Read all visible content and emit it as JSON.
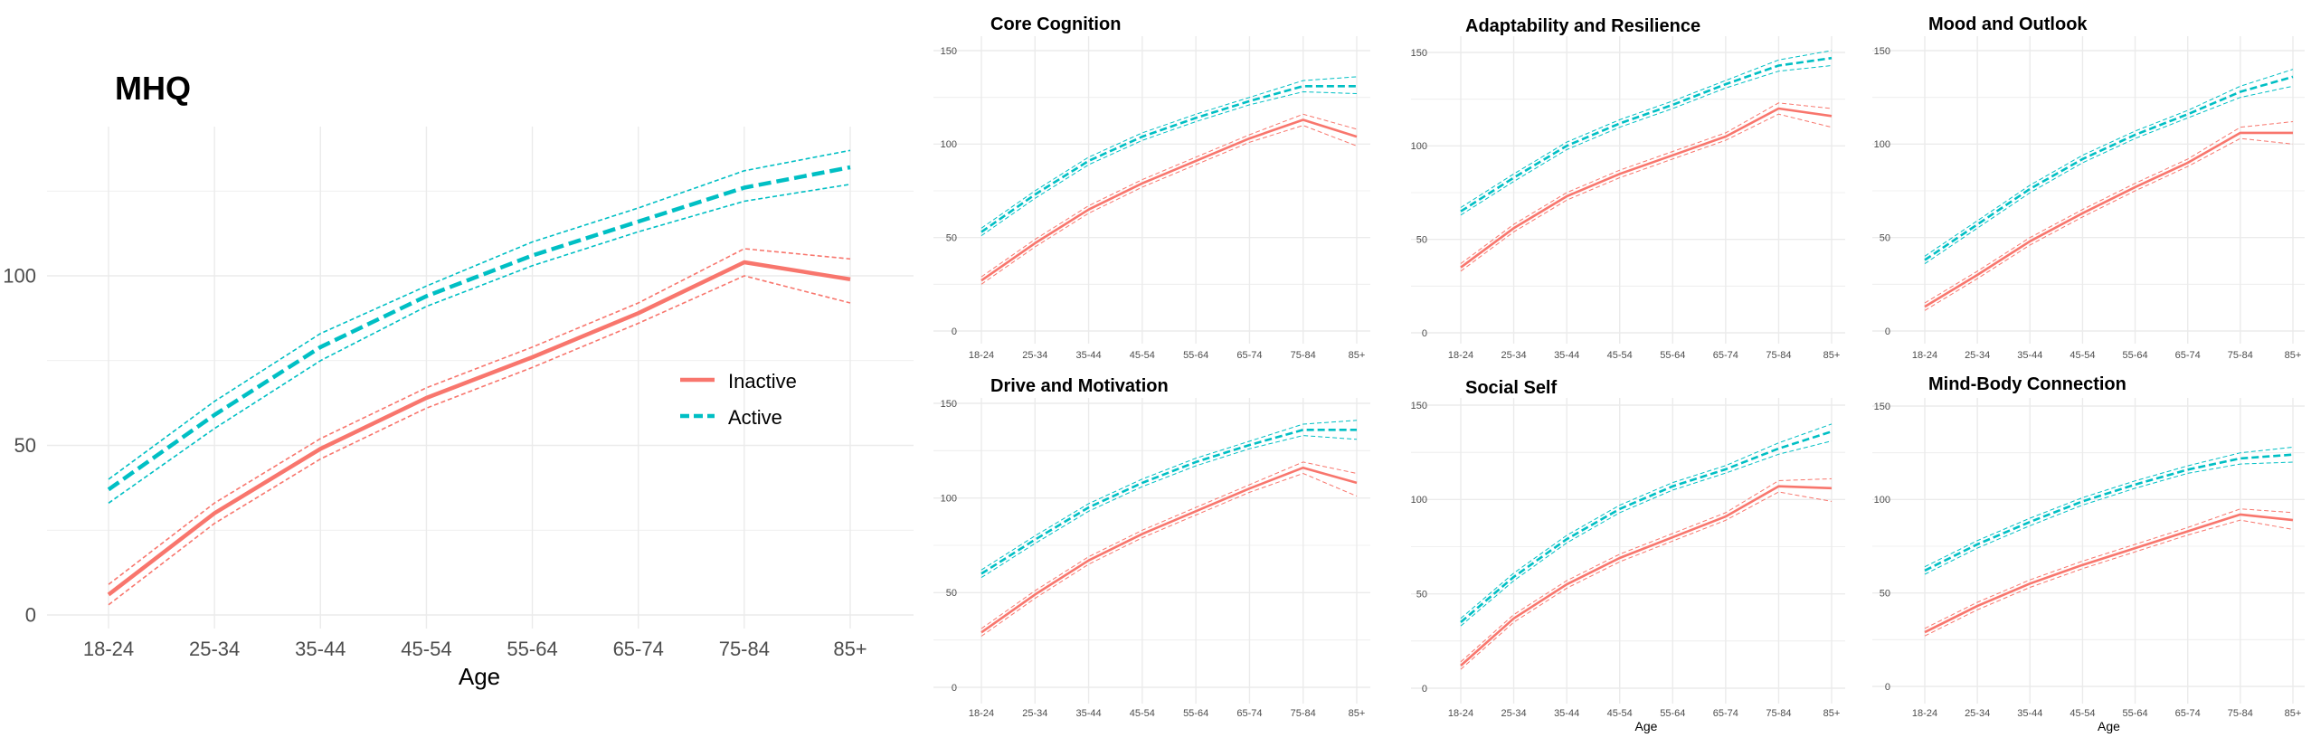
{
  "colors": {
    "inactive": "#f8766d",
    "active": "#00bfc4",
    "grid": "#ebebeb"
  },
  "legend": {
    "inactive": "Inactive",
    "active": "Active",
    "placement": "right"
  },
  "chart_data": [
    {
      "type": "line",
      "title": "MHQ",
      "xlabel": "Age",
      "ylim": [
        0,
        140
      ],
      "yticks": [
        0,
        50,
        100
      ],
      "categories": [
        "18-24",
        "25-34",
        "35-44",
        "45-54",
        "55-64",
        "65-74",
        "75-84",
        "85+"
      ],
      "series": [
        {
          "name": "Inactive",
          "values": [
            6,
            30,
            49,
            64,
            76,
            89,
            104,
            99
          ],
          "lower": [
            3,
            27,
            46,
            61,
            73,
            86,
            100,
            92
          ],
          "upper": [
            9,
            33,
            52,
            67,
            79,
            92,
            108,
            105
          ]
        },
        {
          "name": "Active",
          "values": [
            37,
            59,
            79,
            94,
            106,
            116,
            126,
            132
          ],
          "lower": [
            33,
            55,
            75,
            91,
            103,
            113,
            122,
            127
          ],
          "upper": [
            40,
            63,
            83,
            97,
            110,
            120,
            131,
            137
          ]
        }
      ]
    },
    {
      "type": "line",
      "title": "Core Cognition",
      "xlabel": "",
      "ylim": [
        0,
        150
      ],
      "yticks": [
        0,
        50,
        100,
        150
      ],
      "categories": [
        "18-24",
        "25-34",
        "35-44",
        "45-54",
        "55-64",
        "65-74",
        "75-84",
        "85+"
      ],
      "series": [
        {
          "name": "Inactive",
          "values": [
            27,
            47,
            65,
            79,
            91,
            103,
            113,
            104
          ],
          "lower": [
            25,
            45,
            63,
            77,
            89,
            101,
            110,
            99
          ],
          "upper": [
            29,
            49,
            67,
            81,
            93,
            105,
            116,
            108
          ]
        },
        {
          "name": "Active",
          "values": [
            53,
            73,
            91,
            104,
            114,
            123,
            131,
            131
          ],
          "lower": [
            51,
            71,
            89,
            102,
            112,
            121,
            128,
            127
          ],
          "upper": [
            55,
            75,
            93,
            106,
            116,
            125,
            134,
            136
          ]
        }
      ]
    },
    {
      "type": "line",
      "title": "Adaptability and Resilience",
      "xlabel": "",
      "ylim": [
        0,
        150
      ],
      "yticks": [
        0,
        50,
        100,
        150
      ],
      "categories": [
        "18-24",
        "25-34",
        "35-44",
        "45-54",
        "55-64",
        "65-74",
        "75-84",
        "85+"
      ],
      "series": [
        {
          "name": "Inactive",
          "values": [
            35,
            56,
            73,
            85,
            95,
            105,
            120,
            116
          ],
          "lower": [
            33,
            54,
            71,
            83,
            93,
            103,
            117,
            110
          ],
          "upper": [
            37,
            58,
            75,
            87,
            97,
            107,
            123,
            120
          ]
        },
        {
          "name": "Active",
          "values": [
            65,
            83,
            100,
            112,
            122,
            133,
            143,
            147
          ],
          "lower": [
            63,
            81,
            98,
            110,
            120,
            131,
            140,
            143
          ],
          "upper": [
            67,
            85,
            102,
            114,
            124,
            135,
            146,
            151
          ]
        }
      ]
    },
    {
      "type": "line",
      "title": "Mood and Outlook",
      "xlabel": "",
      "ylim": [
        0,
        150
      ],
      "yticks": [
        0,
        50,
        100,
        150
      ],
      "categories": [
        "18-24",
        "25-34",
        "35-44",
        "45-54",
        "55-64",
        "65-74",
        "75-84",
        "85+"
      ],
      "series": [
        {
          "name": "Inactive",
          "values": [
            13,
            30,
            48,
            63,
            77,
            90,
            106,
            106
          ],
          "lower": [
            11,
            28,
            46,
            61,
            75,
            88,
            103,
            100
          ],
          "upper": [
            15,
            32,
            50,
            65,
            79,
            92,
            109,
            112
          ]
        },
        {
          "name": "Active",
          "values": [
            38,
            57,
            76,
            92,
            105,
            116,
            128,
            136
          ],
          "lower": [
            36,
            55,
            74,
            90,
            103,
            114,
            125,
            131
          ],
          "upper": [
            40,
            59,
            78,
            94,
            107,
            118,
            131,
            140
          ]
        }
      ]
    },
    {
      "type": "line",
      "title": "Drive and Motivation",
      "xlabel": "",
      "ylim": [
        0,
        150
      ],
      "yticks": [
        0,
        50,
        100,
        150
      ],
      "categories": [
        "18-24",
        "25-34",
        "35-44",
        "45-54",
        "55-64",
        "65-74",
        "75-84",
        "85+"
      ],
      "series": [
        {
          "name": "Inactive",
          "values": [
            29,
            49,
            67,
            81,
            93,
            105,
            116,
            108
          ],
          "lower": [
            27,
            47,
            65,
            79,
            91,
            103,
            113,
            101
          ],
          "upper": [
            31,
            51,
            69,
            83,
            95,
            107,
            119,
            113
          ]
        },
        {
          "name": "Active",
          "values": [
            60,
            78,
            95,
            108,
            119,
            128,
            136,
            136
          ],
          "lower": [
            58,
            76,
            93,
            106,
            117,
            126,
            133,
            131
          ],
          "upper": [
            62,
            80,
            97,
            110,
            121,
            130,
            139,
            141
          ]
        }
      ]
    },
    {
      "type": "line",
      "title": "Social Self",
      "xlabel": "Age",
      "ylim": [
        0,
        150
      ],
      "yticks": [
        0,
        50,
        100,
        150
      ],
      "categories": [
        "18-24",
        "25-34",
        "35-44",
        "45-54",
        "55-64",
        "65-74",
        "75-84",
        "85+"
      ],
      "series": [
        {
          "name": "Inactive",
          "values": [
            12,
            37,
            55,
            69,
            80,
            91,
            107,
            106
          ],
          "lower": [
            10,
            35,
            53,
            67,
            78,
            89,
            104,
            99
          ],
          "upper": [
            14,
            39,
            57,
            71,
            82,
            93,
            110,
            111
          ]
        },
        {
          "name": "Active",
          "values": [
            35,
            59,
            79,
            95,
            107,
            116,
            127,
            136
          ],
          "lower": [
            33,
            57,
            77,
            93,
            105,
            114,
            124,
            131
          ],
          "upper": [
            37,
            61,
            81,
            97,
            109,
            118,
            130,
            140
          ]
        }
      ]
    },
    {
      "type": "line",
      "title": "Mind-Body Connection",
      "xlabel": "Age",
      "ylim": [
        0,
        150
      ],
      "yticks": [
        0,
        50,
        100,
        150
      ],
      "categories": [
        "18-24",
        "25-34",
        "35-44",
        "45-54",
        "55-64",
        "65-74",
        "75-84",
        "85+"
      ],
      "series": [
        {
          "name": "Inactive",
          "values": [
            29,
            43,
            55,
            65,
            74,
            83,
            92,
            89
          ],
          "lower": [
            27,
            41,
            53,
            63,
            72,
            81,
            89,
            84
          ],
          "upper": [
            31,
            45,
            57,
            67,
            76,
            85,
            95,
            93
          ]
        },
        {
          "name": "Active",
          "values": [
            62,
            76,
            88,
            99,
            108,
            116,
            122,
            124
          ],
          "lower": [
            60,
            74,
            86,
            97,
            106,
            114,
            119,
            120
          ],
          "upper": [
            64,
            78,
            90,
            101,
            110,
            118,
            125,
            128
          ]
        }
      ]
    }
  ]
}
